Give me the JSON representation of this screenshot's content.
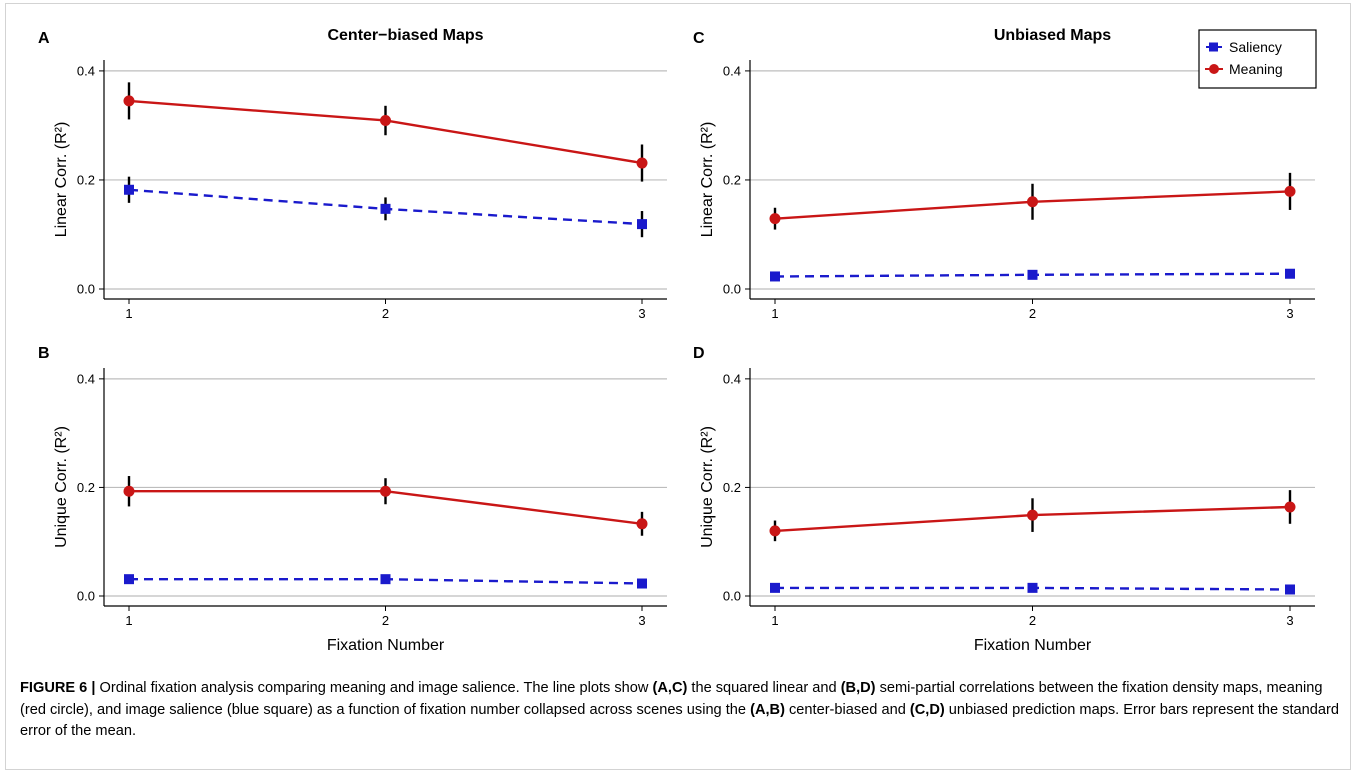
{
  "caption": {
    "label": "FIGURE 6 |",
    "parts": [
      " Ordinal fixation analysis comparing meaning and image salience. The line plots show ",
      "(A,C)",
      " the squared linear and ",
      "(B,D)",
      " semi-partial correlations between the fixation density maps, meaning (red circle), and image salience (blue square) as a function of fixation number collapsed across scenes using the ",
      "(A,B)",
      " center-biased and ",
      "(C,D)",
      " unbiased prediction maps. Error bars represent the standard error of the mean."
    ]
  },
  "colors": {
    "saliency": "#1a1acc",
    "meaning": "#c91616",
    "errorbar": "#000000",
    "grid": "#bdbdbd"
  },
  "chart_data": [
    {
      "panel": "A",
      "type": "line",
      "title": "Center−biased Maps",
      "xlabel": "",
      "ylabel": "Linear Corr. (R²)",
      "x": [
        1,
        2,
        3
      ],
      "ylim": [
        0,
        0.42
      ],
      "yticks": [
        "0.0",
        "0.2",
        "0.4"
      ],
      "xticks": [
        "1",
        "2",
        "3"
      ],
      "grid": true,
      "legend": false,
      "series": [
        {
          "name": "Saliency",
          "values": [
            0.182,
            0.147,
            0.119
          ],
          "err": [
            0.024,
            0.021,
            0.024
          ]
        },
        {
          "name": "Meaning",
          "values": [
            0.345,
            0.309,
            0.231
          ],
          "err": [
            0.034,
            0.027,
            0.034
          ]
        }
      ]
    },
    {
      "panel": "C",
      "type": "line",
      "title": "Unbiased Maps",
      "xlabel": "",
      "ylabel": "Linear Corr. (R²)",
      "x": [
        1,
        2,
        3
      ],
      "ylim": [
        0,
        0.42
      ],
      "yticks": [
        "0.0",
        "0.2",
        "0.4"
      ],
      "xticks": [
        "1",
        "2",
        "3"
      ],
      "grid": true,
      "legend": "top-right",
      "series": [
        {
          "name": "Saliency",
          "values": [
            0.023,
            0.026,
            0.028
          ],
          "err": [
            0.004,
            0.004,
            0.004
          ]
        },
        {
          "name": "Meaning",
          "values": [
            0.129,
            0.16,
            0.179
          ],
          "err": [
            0.02,
            0.033,
            0.034
          ]
        }
      ]
    },
    {
      "panel": "B",
      "type": "line",
      "title": "",
      "xlabel": "Fixation Number",
      "ylabel": "Unique Corr. (R²)",
      "x": [
        1,
        2,
        3
      ],
      "ylim": [
        0,
        0.42
      ],
      "yticks": [
        "0.0",
        "0.2",
        "0.4"
      ],
      "xticks": [
        "1",
        "2",
        "3"
      ],
      "grid": true,
      "legend": false,
      "series": [
        {
          "name": "Saliency",
          "values": [
            0.031,
            0.031,
            0.023
          ],
          "err": [
            0.004,
            0.006,
            0.006
          ]
        },
        {
          "name": "Meaning",
          "values": [
            0.193,
            0.193,
            0.133
          ],
          "err": [
            0.028,
            0.024,
            0.022
          ]
        }
      ]
    },
    {
      "panel": "D",
      "type": "line",
      "title": "",
      "xlabel": "Fixation Number",
      "ylabel": "Unique Corr. (R²)",
      "x": [
        1,
        2,
        3
      ],
      "ylim": [
        0,
        0.42
      ],
      "yticks": [
        "0.0",
        "0.2",
        "0.4"
      ],
      "xticks": [
        "1",
        "2",
        "3"
      ],
      "grid": true,
      "legend": false,
      "series": [
        {
          "name": "Saliency",
          "values": [
            0.015,
            0.015,
            0.012
          ],
          "err": [
            0.003,
            0.003,
            0.003
          ]
        },
        {
          "name": "Meaning",
          "values": [
            0.12,
            0.149,
            0.164
          ],
          "err": [
            0.019,
            0.031,
            0.031
          ]
        }
      ]
    }
  ]
}
